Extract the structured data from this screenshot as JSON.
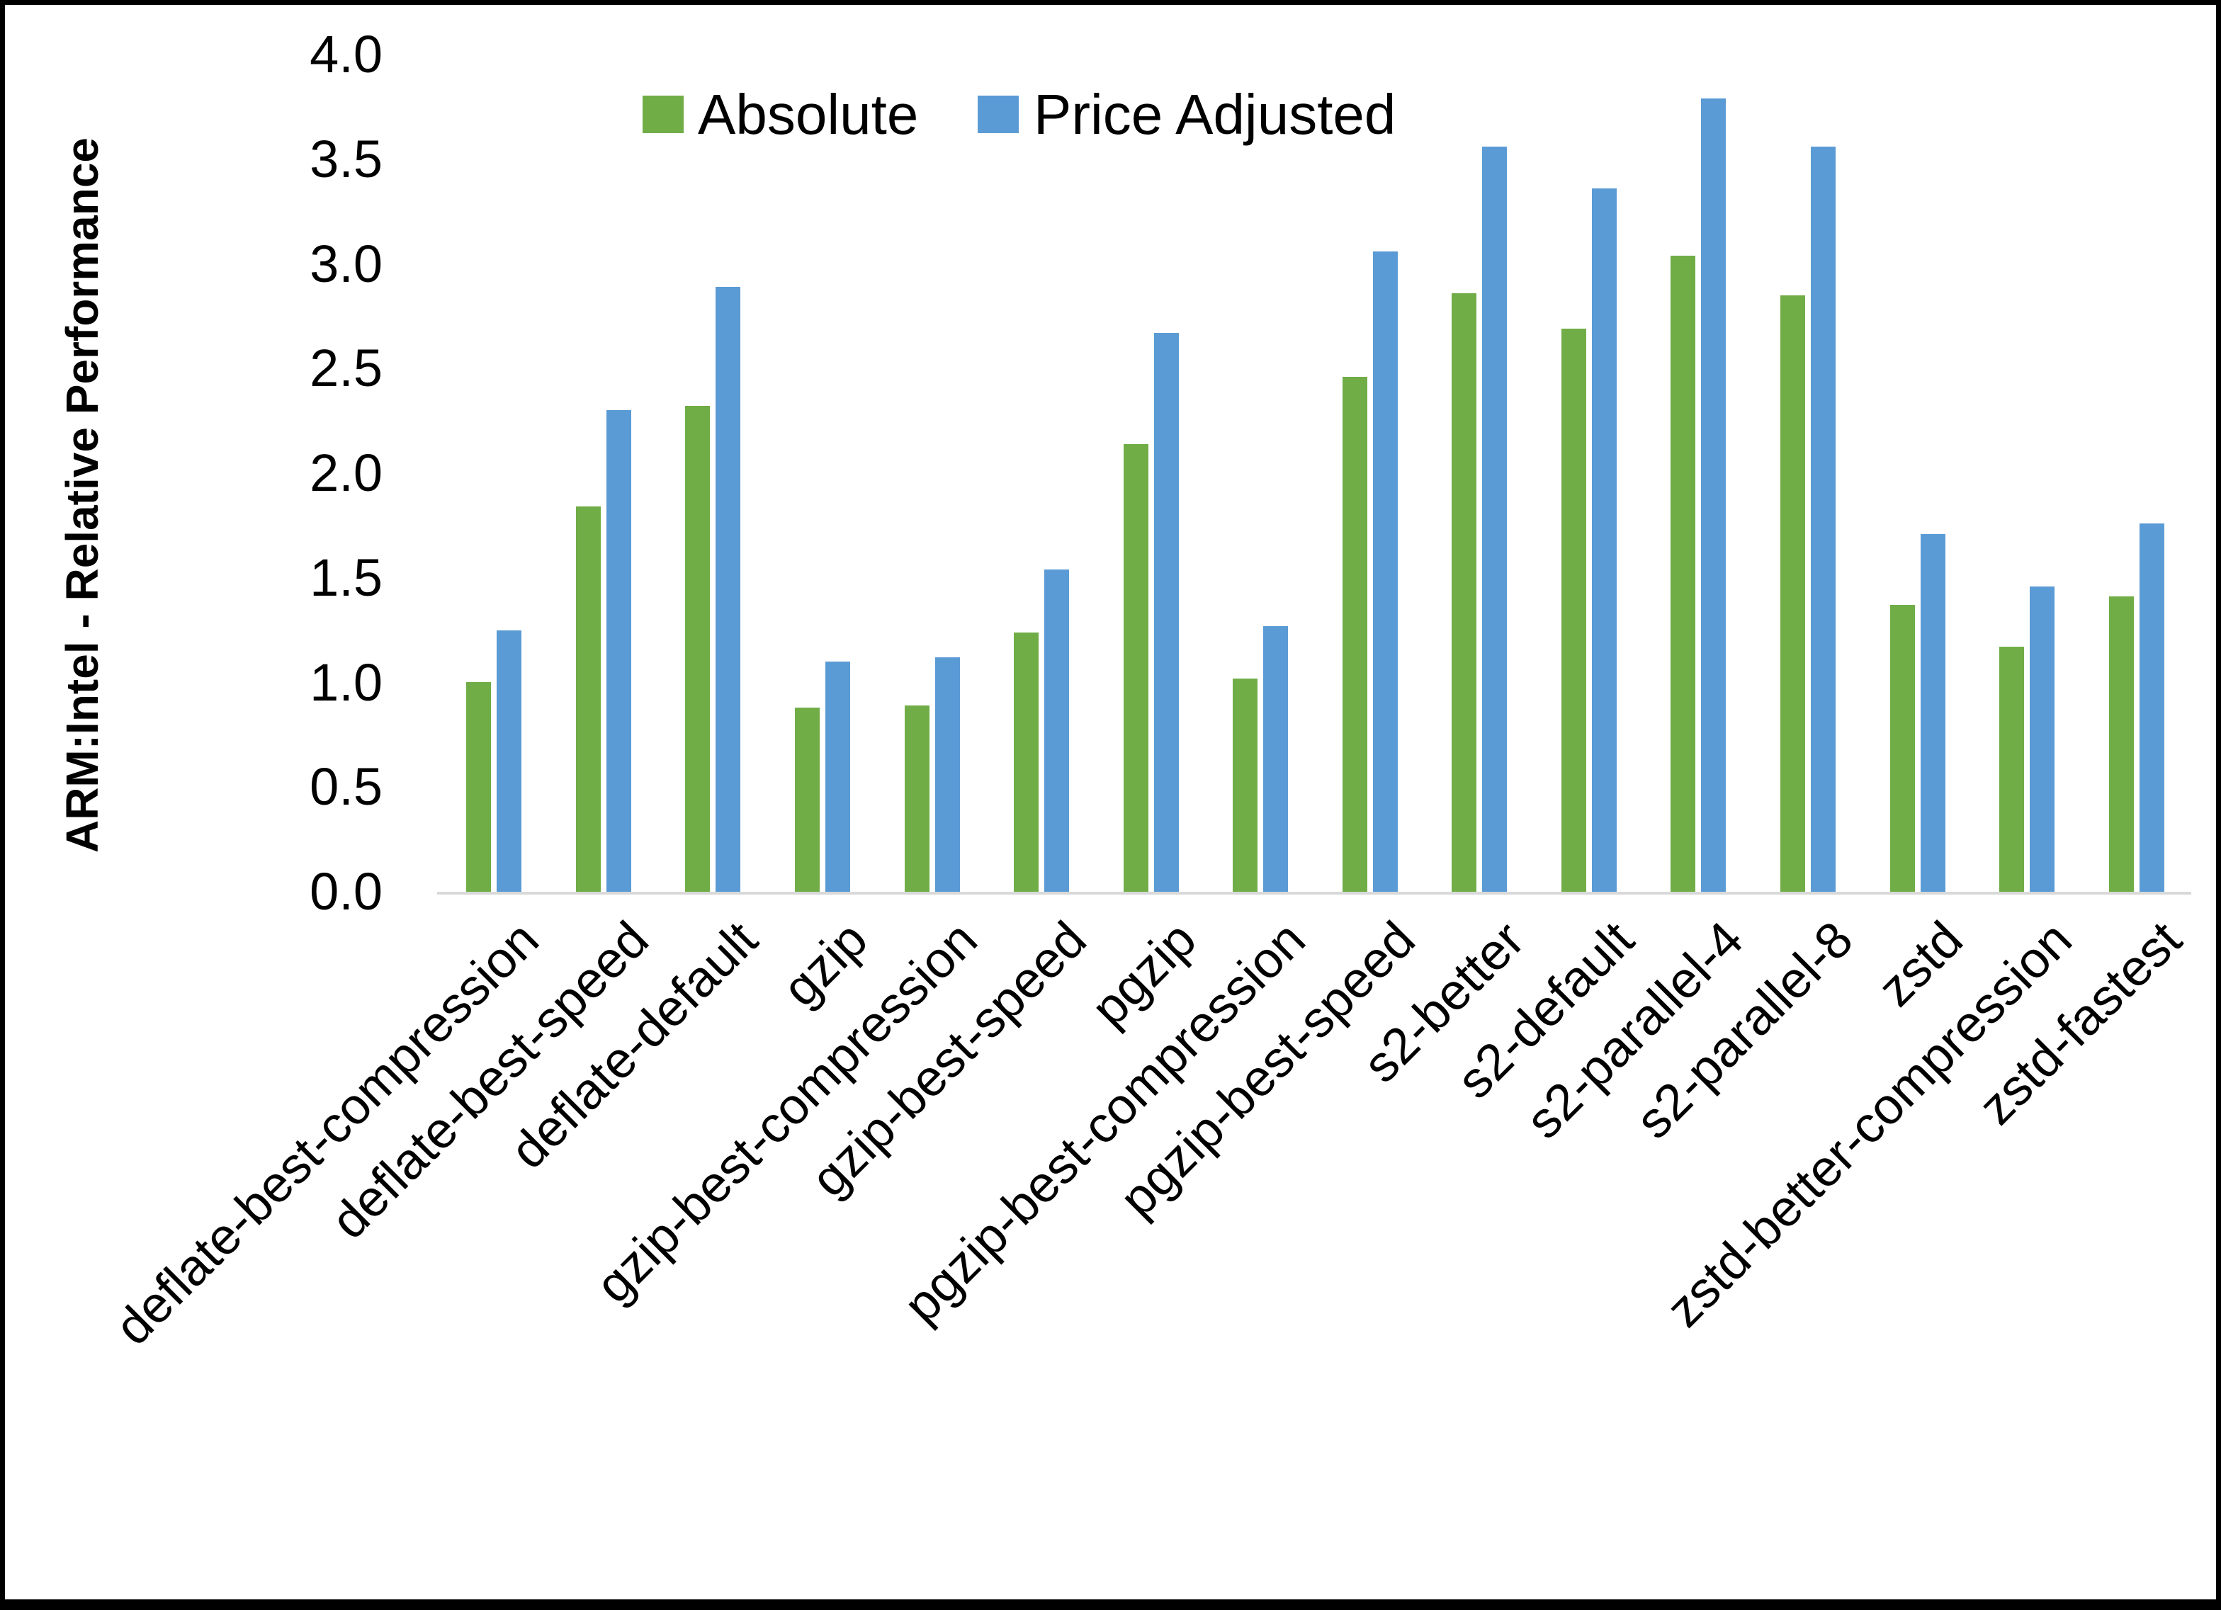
{
  "chart_data": {
    "type": "bar",
    "title": "",
    "xlabel": "",
    "ylabel": "ARM:Intel - Relative Performance",
    "ylim": [
      0.0,
      4.0
    ],
    "ytick_step": 0.5,
    "ytick_labels": [
      "0.0",
      "0.5",
      "1.0",
      "1.5",
      "2.0",
      "2.5",
      "3.0",
      "3.5",
      "4.0"
    ],
    "grid": false,
    "legend_position": "top-center-inside",
    "axis_line_color": "#d9d9d9",
    "background_color": "#ffffff",
    "categories": [
      "deflate-best-compression",
      "deflate-best-speed",
      "deflate-default",
      "gzip",
      "gzip-best-compression",
      "gzip-best-speed",
      "pgzip",
      "pgzip-best-compression",
      "pgzip-best-speed",
      "s2-better",
      "s2-default",
      "s2-parallel-4",
      "s2-parallel-8",
      "zstd",
      "zstd-better-compression",
      "zstd-fastest"
    ],
    "series": [
      {
        "name": "Absolute",
        "color": "#70AD47",
        "values": [
          1.0,
          1.84,
          2.32,
          0.88,
          0.89,
          1.24,
          2.14,
          1.02,
          2.46,
          2.86,
          2.69,
          3.04,
          2.85,
          1.37,
          1.17,
          1.41
        ]
      },
      {
        "name": "Price Adjusted",
        "color": "#5B9BD5",
        "values": [
          1.25,
          2.3,
          2.89,
          1.1,
          1.12,
          1.54,
          2.67,
          1.27,
          3.06,
          3.56,
          3.36,
          3.79,
          3.56,
          1.71,
          1.46,
          1.76
        ]
      }
    ]
  }
}
